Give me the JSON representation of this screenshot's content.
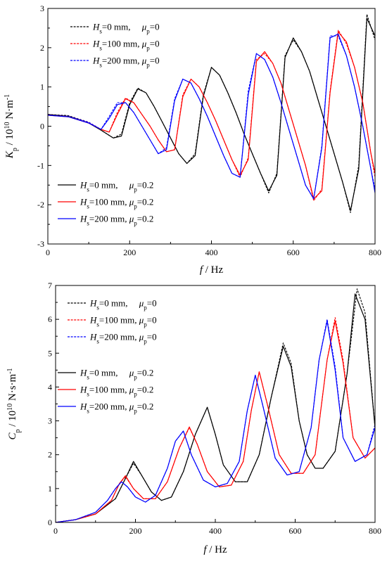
{
  "chart_data": [
    {
      "type": "line",
      "title": "",
      "xlabel": {
        "sym": "f",
        "unit": " / Hz"
      },
      "ylabel": {
        "sym": "K",
        "sub": "p",
        "unit": " / 10",
        "sup": "10",
        "unit2": " N·m",
        "sup2": "-1"
      },
      "xlim": [
        0,
        800
      ],
      "ylim": [
        -3,
        3
      ],
      "xticks": [
        "0",
        "200",
        "400",
        "600",
        "800"
      ],
      "yticks": [
        "-3",
        "-2",
        "-1",
        "0",
        "1",
        "2",
        "3"
      ],
      "grid": false,
      "legends": [
        {
          "placement": "top-left",
          "entries": [
            {
              "series": 0,
              "label": "=0 mm,     "
            },
            {
              "series": 1,
              "label": "=100 mm, "
            },
            {
              "series": 2,
              "label": "=200 mm, "
            }
          ],
          "mu_text": "=0"
        },
        {
          "placement": "bottom-left",
          "entries": [
            {
              "series": 3,
              "label": "=0 mm,     "
            },
            {
              "series": 4,
              "label": "=100 mm, "
            },
            {
              "series": 5,
              "label": "=200 mm, "
            }
          ],
          "mu_text": "=0.2"
        }
      ],
      "series": [
        {
          "Hs": "0",
          "mu": "0",
          "color": "#000000",
          "dash": true,
          "x": [
            0,
            50,
            100,
            130,
            160,
            180,
            200,
            220,
            240,
            260,
            280,
            300,
            320,
            340,
            360,
            380,
            400,
            420,
            440,
            460,
            480,
            500,
            520,
            540,
            560,
            580,
            600,
            620,
            640,
            660,
            680,
            700,
            720,
            740,
            760,
            780,
            800
          ],
          "y": [
            0.3,
            0.27,
            0.1,
            -0.1,
            -0.3,
            -0.2,
            0.6,
            0.97,
            0.85,
            0.5,
            0.1,
            -0.3,
            -0.7,
            -0.95,
            -0.7,
            0.8,
            1.5,
            1.3,
            0.85,
            0.35,
            -0.2,
            -0.7,
            -1.2,
            -1.7,
            -1.2,
            1.8,
            2.2,
            1.9,
            1.4,
            0.7,
            0,
            -0.7,
            -1.4,
            -2.2,
            -1.0,
            2.85,
            2.2
          ]
        },
        {
          "Hs": "100",
          "mu": "0",
          "color": "#ff0000",
          "dash": true,
          "x": [
            0,
            50,
            100,
            130,
            150,
            170,
            190,
            210,
            230,
            250,
            270,
            290,
            310,
            330,
            350,
            370,
            390,
            410,
            430,
            450,
            470,
            490,
            510,
            530,
            550,
            570,
            590,
            610,
            630,
            650,
            670,
            690,
            710,
            730,
            750,
            770,
            790,
            800
          ],
          "y": [
            0.3,
            0.26,
            0.1,
            -0.08,
            -0.15,
            0.35,
            0.72,
            0.6,
            0.3,
            0,
            -0.35,
            -0.65,
            -0.6,
            0.8,
            1.2,
            1.0,
            0.6,
            0.15,
            -0.35,
            -0.85,
            -1.3,
            -0.8,
            1.7,
            1.85,
            1.6,
            1.1,
            0.4,
            -0.3,
            -1.0,
            -1.9,
            -1.6,
            0.9,
            2.45,
            2.1,
            1.5,
            0.6,
            -0.7,
            -1.3
          ]
        },
        {
          "Hs": "200",
          "mu": "0",
          "color": "#0000ff",
          "dash": true,
          "x": [
            0,
            50,
            100,
            130,
            150,
            170,
            190,
            210,
            230,
            250,
            270,
            290,
            310,
            330,
            350,
            370,
            390,
            410,
            430,
            450,
            470,
            490,
            510,
            530,
            550,
            570,
            590,
            610,
            630,
            650,
            670,
            690,
            710,
            730,
            750,
            770,
            790,
            800
          ],
          "y": [
            0.3,
            0.26,
            0.1,
            -0.08,
            0.25,
            0.6,
            0.6,
            0.35,
            0,
            -0.35,
            -0.7,
            -0.55,
            0.7,
            1.2,
            1.1,
            0.7,
            0.25,
            -0.25,
            -0.75,
            -1.2,
            -1.3,
            0.9,
            1.85,
            1.7,
            1.25,
            0.6,
            -0.1,
            -0.8,
            -1.5,
            -1.85,
            -0.5,
            2.3,
            2.3,
            1.8,
            1.0,
            0,
            -1.1,
            -1.6
          ]
        },
        {
          "Hs": "0",
          "mu": "0.2",
          "color": "#000000",
          "dash": false,
          "x": [
            0,
            50,
            100,
            130,
            160,
            180,
            200,
            220,
            240,
            260,
            280,
            300,
            320,
            340,
            360,
            380,
            400,
            420,
            440,
            460,
            480,
            500,
            520,
            540,
            560,
            580,
            600,
            620,
            640,
            660,
            680,
            700,
            720,
            740,
            760,
            780,
            800
          ],
          "y": [
            0.3,
            0.25,
            0.08,
            -0.1,
            -0.3,
            -0.25,
            0.55,
            0.95,
            0.85,
            0.5,
            0.1,
            -0.3,
            -0.7,
            -0.95,
            -0.75,
            0.75,
            1.5,
            1.3,
            0.85,
            0.35,
            -0.2,
            -0.7,
            -1.2,
            -1.65,
            -1.25,
            1.75,
            2.25,
            1.9,
            1.4,
            0.7,
            0,
            -0.7,
            -1.4,
            -2.15,
            -1.1,
            2.75,
            2.3
          ]
        },
        {
          "Hs": "100",
          "mu": "0.2",
          "color": "#ff0000",
          "dash": false,
          "x": [
            0,
            50,
            100,
            130,
            150,
            170,
            190,
            210,
            230,
            250,
            270,
            290,
            310,
            330,
            350,
            370,
            390,
            410,
            430,
            450,
            470,
            490,
            510,
            530,
            550,
            570,
            590,
            610,
            630,
            650,
            670,
            690,
            710,
            730,
            750,
            770,
            790,
            800
          ],
          "y": [
            0.28,
            0.24,
            0.08,
            -0.08,
            -0.15,
            0.3,
            0.7,
            0.6,
            0.3,
            0,
            -0.35,
            -0.65,
            -0.6,
            0.75,
            1.2,
            1.0,
            0.6,
            0.15,
            -0.35,
            -0.85,
            -1.25,
            -0.85,
            1.65,
            1.9,
            1.6,
            1.1,
            0.4,
            -0.3,
            -1.0,
            -1.85,
            -1.65,
            0.85,
            2.4,
            2.15,
            1.5,
            0.6,
            -0.7,
            -1.2
          ]
        },
        {
          "Hs": "200",
          "mu": "0.2",
          "color": "#0000ff",
          "dash": false,
          "x": [
            0,
            50,
            100,
            130,
            150,
            170,
            190,
            210,
            230,
            250,
            270,
            290,
            310,
            330,
            350,
            370,
            390,
            410,
            430,
            450,
            470,
            490,
            510,
            530,
            550,
            570,
            590,
            610,
            630,
            650,
            670,
            690,
            710,
            730,
            750,
            770,
            790,
            800
          ],
          "y": [
            0.28,
            0.24,
            0.08,
            -0.08,
            0.2,
            0.55,
            0.6,
            0.35,
            0,
            -0.35,
            -0.7,
            -0.6,
            0.65,
            1.2,
            1.1,
            0.7,
            0.25,
            -0.25,
            -0.75,
            -1.2,
            -1.3,
            0.8,
            1.85,
            1.7,
            1.25,
            0.6,
            -0.1,
            -0.8,
            -1.5,
            -1.85,
            -0.55,
            2.25,
            2.35,
            1.8,
            1.0,
            0,
            -1.1,
            -1.7
          ]
        }
      ]
    },
    {
      "type": "line",
      "title": "",
      "xlabel": {
        "sym": "f",
        "unit": " / Hz"
      },
      "ylabel": {
        "sym": "C",
        "sub": "p",
        "unit": " / 10",
        "sup": "10",
        "unit2": " N·s·m",
        "sup2": "-1"
      },
      "xlim": [
        0,
        800
      ],
      "ylim": [
        0,
        7
      ],
      "xticks": [
        "0",
        "200",
        "400",
        "600",
        "800"
      ],
      "yticks": [
        "0",
        "1",
        "2",
        "3",
        "4",
        "5",
        "6",
        "7"
      ],
      "grid": false,
      "legends": [
        {
          "placement": "top-left",
          "entries": [
            {
              "series": 0,
              "label": "=0 mm,     "
            },
            {
              "series": 1,
              "label": "=100 mm, "
            },
            {
              "series": 2,
              "label": "=200 mm, "
            }
          ],
          "mu_text": "=0"
        },
        {
          "placement": "middle-left",
          "entries": [
            {
              "series": 3,
              "label": "=0 mm,     "
            },
            {
              "series": 4,
              "label": "=100 mm, "
            },
            {
              "series": 5,
              "label": "=200 mm, "
            }
          ],
          "mu_text": "=0.2"
        }
      ],
      "series": [
        {
          "Hs": "0",
          "mu": "0",
          "color": "#000000",
          "dash": true,
          "x": [
            0,
            50,
            100,
            150,
            175,
            195,
            215,
            240,
            265,
            290,
            320,
            350,
            380,
            400,
            420,
            450,
            480,
            510,
            540,
            570,
            590,
            610,
            630,
            650,
            670,
            700,
            730,
            755,
            775,
            800
          ],
          "y": [
            0,
            0.08,
            0.25,
            0.7,
            1.3,
            1.75,
            1.4,
            0.9,
            0.65,
            0.75,
            1.5,
            2.6,
            3.4,
            2.6,
            1.7,
            1.2,
            1.2,
            2.0,
            3.7,
            5.3,
            4.7,
            3.0,
            2.0,
            1.6,
            1.6,
            2.1,
            4.4,
            6.9,
            6.2,
            2.8
          ]
        },
        {
          "Hs": "100",
          "mu": "0",
          "color": "#ff0000",
          "dash": true,
          "x": [
            0,
            50,
            100,
            140,
            160,
            175,
            195,
            220,
            250,
            280,
            310,
            335,
            355,
            380,
            410,
            440,
            470,
            490,
            510,
            530,
            560,
            590,
            620,
            650,
            680,
            700,
            720,
            745,
            775,
            800
          ],
          "y": [
            0,
            0.08,
            0.25,
            0.65,
            1.15,
            1.35,
            1.0,
            0.7,
            0.7,
            1.2,
            2.2,
            2.8,
            2.3,
            1.5,
            1.05,
            1.1,
            1.8,
            3.3,
            4.45,
            3.5,
            2.0,
            1.45,
            1.45,
            2.0,
            4.8,
            6.05,
            4.8,
            2.5,
            1.9,
            2.2
          ]
        },
        {
          "Hs": "200",
          "mu": "0",
          "color": "#0000ff",
          "dash": true,
          "x": [
            0,
            50,
            100,
            130,
            150,
            165,
            180,
            200,
            225,
            250,
            280,
            300,
            320,
            340,
            370,
            400,
            430,
            460,
            480,
            500,
            520,
            550,
            580,
            610,
            640,
            660,
            680,
            700,
            720,
            750,
            780,
            800
          ],
          "y": [
            0,
            0.08,
            0.3,
            0.65,
            1.0,
            1.2,
            1.05,
            0.75,
            0.6,
            0.8,
            1.6,
            2.4,
            2.7,
            2.0,
            1.25,
            1.05,
            1.15,
            1.8,
            3.3,
            4.35,
            3.4,
            1.9,
            1.4,
            1.5,
            2.8,
            4.8,
            6.0,
            4.6,
            2.5,
            1.8,
            2.0,
            2.9
          ]
        },
        {
          "Hs": "0",
          "mu": "0.2",
          "color": "#000000",
          "dash": false,
          "x": [
            0,
            50,
            100,
            150,
            175,
            195,
            215,
            240,
            265,
            290,
            320,
            350,
            380,
            400,
            420,
            450,
            480,
            510,
            540,
            570,
            590,
            610,
            630,
            650,
            670,
            700,
            730,
            750,
            775,
            800
          ],
          "y": [
            0,
            0.08,
            0.25,
            0.7,
            1.3,
            1.8,
            1.4,
            0.9,
            0.65,
            0.75,
            1.5,
            2.6,
            3.4,
            2.6,
            1.7,
            1.2,
            1.2,
            2.0,
            3.7,
            5.2,
            4.6,
            3.0,
            2.0,
            1.6,
            1.6,
            2.1,
            4.4,
            6.75,
            6.0,
            2.8
          ]
        },
        {
          "Hs": "100",
          "mu": "0.2",
          "color": "#ff0000",
          "dash": false,
          "x": [
            0,
            50,
            100,
            140,
            160,
            175,
            195,
            220,
            250,
            280,
            310,
            335,
            355,
            380,
            410,
            440,
            470,
            490,
            510,
            530,
            560,
            590,
            620,
            650,
            680,
            700,
            720,
            745,
            775,
            800
          ],
          "y": [
            0,
            0.08,
            0.25,
            0.65,
            1.15,
            1.38,
            1.0,
            0.7,
            0.7,
            1.2,
            2.2,
            2.82,
            2.3,
            1.5,
            1.05,
            1.1,
            1.8,
            3.3,
            4.45,
            3.5,
            2.0,
            1.45,
            1.45,
            2.0,
            4.8,
            5.95,
            4.7,
            2.5,
            1.9,
            2.2
          ]
        },
        {
          "Hs": "200",
          "mu": "0.2",
          "color": "#0000ff",
          "dash": false,
          "x": [
            0,
            50,
            100,
            130,
            150,
            165,
            180,
            200,
            225,
            250,
            280,
            300,
            320,
            340,
            370,
            400,
            430,
            460,
            480,
            500,
            520,
            550,
            580,
            610,
            640,
            660,
            680,
            700,
            720,
            750,
            780,
            800
          ],
          "y": [
            0,
            0.08,
            0.3,
            0.65,
            1.0,
            1.2,
            1.05,
            0.75,
            0.6,
            0.8,
            1.6,
            2.4,
            2.7,
            2.0,
            1.25,
            1.05,
            1.15,
            1.8,
            3.3,
            4.35,
            3.4,
            1.9,
            1.4,
            1.5,
            2.8,
            4.8,
            5.95,
            4.5,
            2.5,
            1.8,
            2.0,
            2.8
          ]
        }
      ]
    }
  ]
}
